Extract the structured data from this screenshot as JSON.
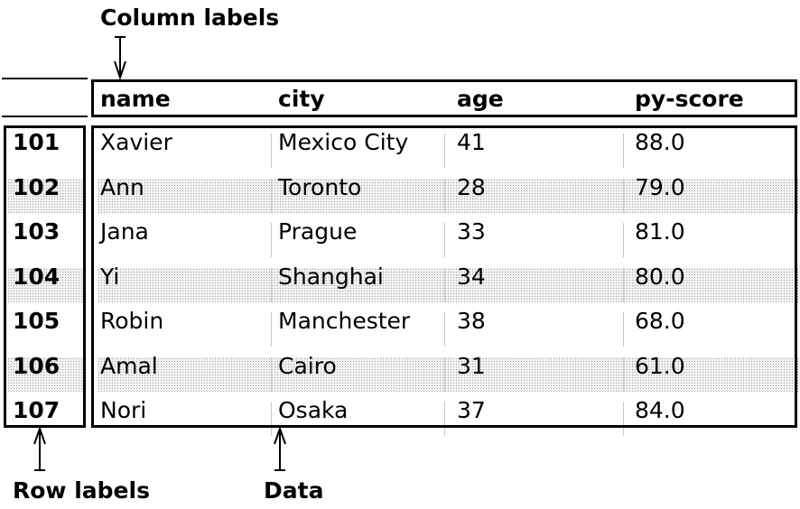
{
  "annotations": {
    "column_labels": "Column labels",
    "row_labels": "Row labels",
    "data": "Data"
  },
  "columns": [
    "name",
    "city",
    "age",
    "py-score"
  ],
  "row_labels": [
    "101",
    "102",
    "103",
    "104",
    "105",
    "106",
    "107"
  ],
  "rows": [
    [
      "Xavier",
      "Mexico City",
      "41",
      "88.0"
    ],
    [
      "Ann",
      "Toronto",
      "28",
      "79.0"
    ],
    [
      "Jana",
      "Prague",
      "33",
      "81.0"
    ],
    [
      "Yi",
      "Shanghai",
      "34",
      "80.0"
    ],
    [
      "Robin",
      "Manchester",
      "38",
      "68.0"
    ],
    [
      "Amal",
      "Cairo",
      "31",
      "61.0"
    ],
    [
      "Nori",
      "Osaka",
      "37",
      "84.0"
    ]
  ]
}
